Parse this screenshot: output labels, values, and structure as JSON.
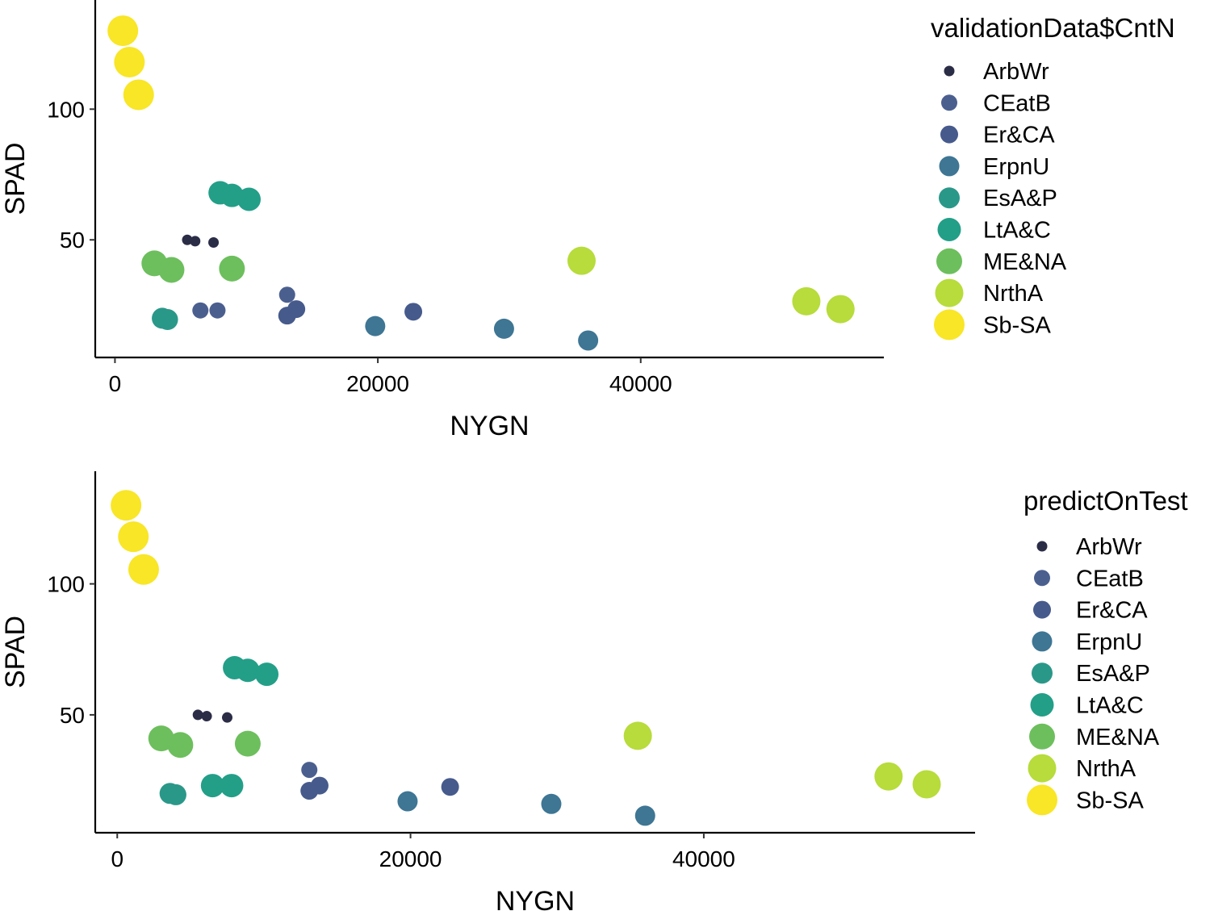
{
  "colors": {
    "ArbWr": "#2b2d47",
    "CEatB": "#4b5f8f",
    "Er&CA": "#465a8c",
    "ErpnU": "#3e7694",
    "EsA&P": "#2a9889",
    "LtA&C": "#239f88",
    "ME&NA": "#6dbf5d",
    "NrthA": "#b7dc3b",
    "Sb-SA": "#f8e627"
  },
  "chart_data": [
    {
      "type": "scatter",
      "title": "",
      "xlabel": "NYGN",
      "ylabel": "SPAD",
      "xlim": [
        -1500,
        58500
      ],
      "ylim": [
        5,
        143
      ],
      "x_ticks": [
        0,
        20000,
        40000
      ],
      "x_tick_labels": [
        "0",
        "20000",
        "40000"
      ],
      "y_ticks": [
        50,
        100
      ],
      "y_tick_labels": [
        "50",
        "100"
      ],
      "grid": false,
      "legend": {
        "title": "validationData$CntN",
        "placement": "right",
        "entries": [
          "ArbWr",
          "CEatB",
          "Er&CA",
          "ErpnU",
          "EsA&P",
          "LtA&C",
          "ME&NA",
          "NrthA",
          "Sb-SA"
        ]
      },
      "series": [
        {
          "name": "ArbWr",
          "points": [
            [
              5500,
              50
            ],
            [
              6100,
              49.5
            ],
            [
              7500,
              49
            ]
          ]
        },
        {
          "name": "CEatB",
          "points": [
            [
              6500,
              23
            ],
            [
              7800,
              23
            ],
            [
              13100,
              29
            ]
          ]
        },
        {
          "name": "Er&CA",
          "points": [
            [
              13100,
              21
            ],
            [
              13800,
              23.5
            ],
            [
              22700,
              22.5
            ]
          ]
        },
        {
          "name": "ErpnU",
          "points": [
            [
              19800,
              17
            ],
            [
              29600,
              16
            ],
            [
              36000,
              11.5
            ]
          ]
        },
        {
          "name": "EsA&P",
          "points": [
            [
              3600,
              20
            ],
            [
              4000,
              19.5
            ]
          ]
        },
        {
          "name": "LtA&C",
          "points": [
            [
              8000,
              68
            ],
            [
              8900,
              67
            ],
            [
              10200,
              65.5
            ]
          ]
        },
        {
          "name": "ME&NA",
          "points": [
            [
              3000,
              41
            ],
            [
              4300,
              38.5
            ],
            [
              8900,
              39
            ]
          ]
        },
        {
          "name": "NrthA",
          "points": [
            [
              35500,
              42
            ],
            [
              52600,
              26.5
            ],
            [
              55200,
              23.5
            ]
          ]
        },
        {
          "name": "Sb-SA",
          "points": [
            [
              600,
              130
            ],
            [
              1100,
              118
            ],
            [
              1800,
              105.5
            ]
          ]
        }
      ]
    },
    {
      "type": "scatter",
      "title": "",
      "xlabel": "NYGN",
      "ylabel": "SPAD",
      "xlim": [
        -1500,
        58500
      ],
      "ylim": [
        5,
        143
      ],
      "x_ticks": [
        0,
        20000,
        40000
      ],
      "x_tick_labels": [
        "0",
        "20000",
        "40000"
      ],
      "y_ticks": [
        50,
        100
      ],
      "y_tick_labels": [
        "50",
        "100"
      ],
      "grid": false,
      "legend": {
        "title": "predictOnTest",
        "placement": "right",
        "entries": [
          "ArbWr",
          "CEatB",
          "Er&CA",
          "ErpnU",
          "EsA&P",
          "LtA&C",
          "ME&NA",
          "NrthA",
          "Sb-SA"
        ]
      },
      "series": [
        {
          "name": "ArbWr",
          "points": [
            [
              5500,
              50
            ],
            [
              6100,
              49.5
            ],
            [
              7500,
              49
            ]
          ]
        },
        {
          "name": "CEatB",
          "points": [
            [
              13100,
              29
            ]
          ]
        },
        {
          "name": "Er&CA",
          "points": [
            [
              13100,
              21
            ],
            [
              13800,
              23
            ],
            [
              22700,
              22.5
            ]
          ]
        },
        {
          "name": "ErpnU",
          "points": [
            [
              19800,
              17
            ],
            [
              29600,
              16
            ],
            [
              36000,
              11.5
            ]
          ]
        },
        {
          "name": "EsA&P",
          "points": [
            [
              3600,
              20
            ],
            [
              4000,
              19.5
            ]
          ]
        },
        {
          "name": "LtA&C",
          "points": [
            [
              6500,
              23
            ],
            [
              7800,
              23
            ],
            [
              8000,
              68
            ],
            [
              8900,
              67
            ],
            [
              10200,
              65.5
            ]
          ]
        },
        {
          "name": "ME&NA",
          "points": [
            [
              3000,
              41
            ],
            [
              4300,
              38.5
            ],
            [
              8900,
              39
            ]
          ]
        },
        {
          "name": "NrthA",
          "points": [
            [
              35500,
              42
            ],
            [
              52600,
              26.5
            ],
            [
              55200,
              23.5
            ]
          ]
        },
        {
          "name": "Sb-SA",
          "points": [
            [
              600,
              130
            ],
            [
              1100,
              118
            ],
            [
              1800,
              105.5
            ]
          ]
        }
      ]
    }
  ]
}
